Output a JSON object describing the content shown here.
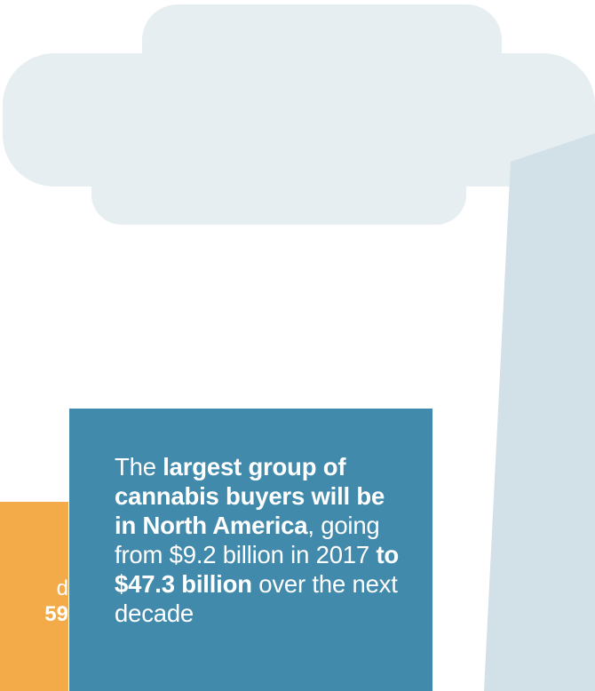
{
  "colors": {
    "background": "#ffffff",
    "cloud": "#e6eef1",
    "beam": "#d1e1e7",
    "orange": "#f3ab4a",
    "blue": "#428aab",
    "text": "#ffffff"
  },
  "orange_callout": {
    "line1": "d",
    "line2": "59"
  },
  "blue_callout": {
    "p1": "The ",
    "b1": "largest group of cannabis buyers will be in North America",
    "p2": ", going from $9.2 billion in 2017 ",
    "b2": "to $47.3 billion",
    "p3": " over the next decade"
  }
}
